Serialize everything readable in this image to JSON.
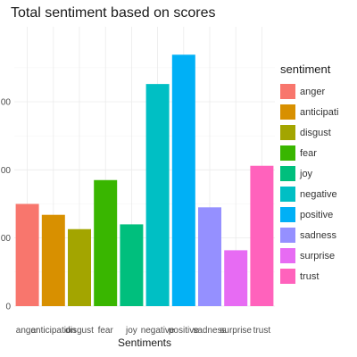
{
  "chart_data": {
    "type": "bar",
    "title": "Total sentiment based on scores",
    "xlabel": "Sentiments",
    "ylabel": "",
    "categories": [
      "anger",
      "anticipation",
      "disgust",
      "fear",
      "joy",
      "negative",
      "positive",
      "sadness",
      "surprise",
      "trust"
    ],
    "values": [
      750,
      670,
      565,
      925,
      600,
      1630,
      1845,
      725,
      410,
      1030
    ],
    "ylim": [
      0,
      2050
    ],
    "yticks": [
      0,
      500,
      1000,
      1500
    ],
    "ytick_labels": [
      "0",
      "00",
      "00",
      "00"
    ],
    "colors": [
      "#F8766D",
      "#D89000",
      "#A3A500",
      "#39B600",
      "#00BF7D",
      "#00BFC4",
      "#00B0F6",
      "#9590FF",
      "#E76BF3",
      "#FF62BC"
    ],
    "grid": true,
    "legend": {
      "title": "sentiment",
      "position": "right",
      "labels": [
        "anger",
        "anticipati",
        "disgust",
        "fear",
        "joy",
        "negative",
        "positive",
        "sadness",
        "surprise",
        "trust"
      ]
    }
  }
}
